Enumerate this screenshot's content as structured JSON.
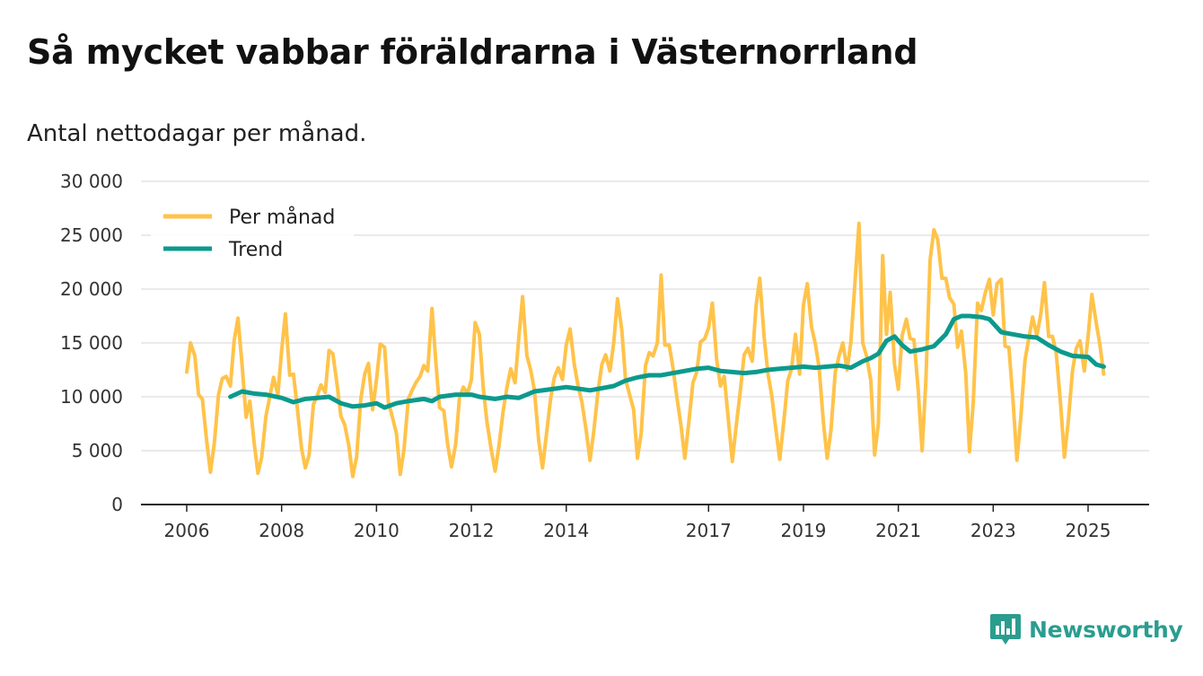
{
  "title": "Så mycket vabbar föräldrarna i Västernorrland",
  "subtitle": "Antal nettodagar per månad.",
  "brand": {
    "name": "Newsworthy",
    "icon": "newsworthy-logo-icon"
  },
  "colors": {
    "monthly": "#ffc34a",
    "trend": "#0b9a8d",
    "grid": "#dddddd",
    "axis": "#222222",
    "brand": "#2a9d8f"
  },
  "chart_data": {
    "type": "line",
    "title": "Så mycket vabbar föräldrarna i Västernorrland",
    "ylabel": "Antal nettodagar per månad.",
    "xlabel": "",
    "ylim": [
      0,
      30000
    ],
    "yticks": [
      0,
      5000,
      10000,
      15000,
      20000,
      25000,
      30000
    ],
    "ytick_labels": [
      "0",
      "5 000",
      "10 000",
      "15 000",
      "20 000",
      "25 000",
      "30 000"
    ],
    "xlim": [
      2006.0,
      2026.33
    ],
    "xticks": [
      2006,
      2008,
      2010,
      2012,
      2014,
      2017,
      2019,
      2021,
      2023,
      2025
    ],
    "xtick_labels": [
      "2006",
      "2008",
      "2010",
      "2012",
      "2014",
      "2017",
      "2019",
      "2021",
      "2023",
      "2025"
    ],
    "legend_position": "top-left",
    "series": [
      {
        "name": "Per månad",
        "color": "#ffc34a",
        "x": [
          2006.0,
          2006.08,
          2006.17,
          2006.25,
          2006.33,
          2006.42,
          2006.5,
          2006.58,
          2006.67,
          2006.75,
          2006.83,
          2006.92,
          2007.0,
          2007.08,
          2007.17,
          2007.25,
          2007.33,
          2007.42,
          2007.5,
          2007.58,
          2007.67,
          2007.75,
          2007.83,
          2007.92,
          2008.0,
          2008.08,
          2008.17,
          2008.25,
          2008.33,
          2008.42,
          2008.5,
          2008.58,
          2008.67,
          2008.75,
          2008.83,
          2008.92,
          2009.0,
          2009.08,
          2009.17,
          2009.25,
          2009.33,
          2009.42,
          2009.5,
          2009.58,
          2009.67,
          2009.75,
          2009.83,
          2009.92,
          2010.0,
          2010.08,
          2010.17,
          2010.25,
          2010.33,
          2010.42,
          2010.5,
          2010.58,
          2010.67,
          2010.75,
          2010.83,
          2010.92,
          2011.0,
          2011.08,
          2011.17,
          2011.25,
          2011.33,
          2011.42,
          2011.5,
          2011.58,
          2011.67,
          2011.75,
          2011.83,
          2011.92,
          2012.0,
          2012.08,
          2012.17,
          2012.25,
          2012.33,
          2012.42,
          2012.5,
          2012.58,
          2012.67,
          2012.75,
          2012.83,
          2012.92,
          2013.0,
          2013.08,
          2013.17,
          2013.25,
          2013.33,
          2013.42,
          2013.5,
          2013.58,
          2013.67,
          2013.75,
          2013.83,
          2013.92,
          2014.0,
          2014.08,
          2014.17,
          2014.25,
          2014.33,
          2014.42,
          2014.5,
          2014.58,
          2014.67,
          2014.75,
          2014.83,
          2014.92,
          2015.0,
          2015.08,
          2015.17,
          2015.25,
          2015.33,
          2015.42,
          2015.5,
          2015.58,
          2015.67,
          2015.75,
          2015.83,
          2015.92,
          2016.0,
          2016.08,
          2016.17,
          2016.25,
          2016.33,
          2016.42,
          2016.5,
          2016.58,
          2016.67,
          2016.75,
          2016.83,
          2016.92,
          2017.0,
          2017.08,
          2017.17,
          2017.25,
          2017.33,
          2017.42,
          2017.5,
          2017.58,
          2017.67,
          2017.75,
          2017.83,
          2017.92,
          2018.0,
          2018.08,
          2018.17,
          2018.25,
          2018.33,
          2018.42,
          2018.5,
          2018.58,
          2018.67,
          2018.75,
          2018.83,
          2018.92,
          2019.0,
          2019.08,
          2019.17,
          2019.25,
          2019.33,
          2019.42,
          2019.5,
          2019.58,
          2019.67,
          2019.75,
          2019.83,
          2019.92,
          2020.0,
          2020.08,
          2020.17,
          2020.25,
          2020.33,
          2020.42,
          2020.5,
          2020.58,
          2020.67,
          2020.75,
          2020.83,
          2020.92,
          2021.0,
          2021.08,
          2021.17,
          2021.25,
          2021.33,
          2021.42,
          2021.5,
          2021.58,
          2021.67,
          2021.75,
          2021.83,
          2021.92,
          2022.0,
          2022.08,
          2022.17,
          2022.25,
          2022.33,
          2022.42,
          2022.5,
          2022.58,
          2022.67,
          2022.75,
          2022.83,
          2022.92,
          2023.0,
          2023.08,
          2023.17,
          2023.25,
          2023.33,
          2023.42,
          2023.5,
          2023.58,
          2023.67,
          2023.75,
          2023.83,
          2023.92,
          2024.0,
          2024.08,
          2024.17,
          2024.25,
          2024.33,
          2024.42,
          2024.5,
          2024.58,
          2024.67,
          2024.75,
          2024.83,
          2024.92,
          2025.0,
          2025.08,
          2025.17,
          2025.25,
          2025.33
        ],
        "values": [
          12300,
          15000,
          13800,
          10200,
          9800,
          5900,
          3000,
          5600,
          10200,
          11700,
          11900,
          11000,
          15200,
          17300,
          12800,
          8100,
          9600,
          5800,
          2900,
          4400,
          8200,
          10000,
          11800,
          10200,
          14300,
          17700,
          12000,
          12100,
          9000,
          5200,
          3400,
          4600,
          9300,
          10100,
          11100,
          10400,
          14300,
          14000,
          11100,
          8200,
          7400,
          5400,
          2600,
          4400,
          9800,
          12100,
          13100,
          8800,
          11600,
          14900,
          14600,
          9500,
          8200,
          6600,
          2800,
          5100,
          9800,
          10600,
          11300,
          11900,
          12900,
          12400,
          18200,
          13300,
          9000,
          8700,
          5600,
          3500,
          5600,
          9900,
          10900,
          10300,
          11600,
          16900,
          15800,
          10800,
          7600,
          5100,
          3100,
          5400,
          8700,
          10900,
          12600,
          11300,
          15500,
          19300,
          13800,
          12500,
          10600,
          5900,
          3400,
          6400,
          9800,
          11800,
          12700,
          11600,
          14800,
          16300,
          13000,
          11000,
          9500,
          6900,
          4100,
          6800,
          10500,
          13000,
          13900,
          12400,
          15000,
          19100,
          16200,
          11600,
          10300,
          8800,
          4300,
          6600,
          12900,
          14100,
          13800,
          15000,
          21300,
          14800,
          14800,
          12700,
          10000,
          7300,
          4300,
          7500,
          11300,
          12300,
          15100,
          15400,
          16400,
          18700,
          13500,
          11000,
          11900,
          7700,
          4000,
          7200,
          10600,
          13900,
          14500,
          13300,
          18400,
          21000,
          15600,
          12200,
          10200,
          6900,
          4200,
          7500,
          11500,
          12600,
          15800,
          12100,
          18500,
          20500,
          16500,
          14900,
          12700,
          7700,
          4300,
          6900,
          12300,
          13800,
          15000,
          12500,
          15100,
          20200,
          26100,
          15000,
          13800,
          11500,
          4600,
          7500,
          23100,
          15800,
          19700,
          13000,
          10700,
          15700,
          17200,
          15400,
          15300,
          10600,
          5000,
          11500,
          22700,
          25500,
          24600,
          21000,
          21000,
          19200,
          18600,
          14600,
          16100,
          12200,
          4900,
          9500,
          18700,
          18000,
          19600,
          20900,
          17600,
          20500,
          20900,
          14700,
          14600,
          9500,
          4100,
          8000,
          13400,
          15400,
          17400,
          15700,
          17600,
          20600,
          15600,
          15600,
          14000,
          9300,
          4400,
          7600,
          12400,
          14500,
          15200,
          12400,
          15600,
          19500,
          16900,
          14800,
          12100
        ]
      },
      {
        "name": "Trend",
        "color": "#0b9a8d",
        "x": [
          2006.92,
          2007.17,
          2007.42,
          2007.67,
          2008.0,
          2008.25,
          2008.5,
          2008.75,
          2009.0,
          2009.25,
          2009.5,
          2009.75,
          2010.0,
          2010.17,
          2010.42,
          2010.67,
          2011.0,
          2011.17,
          2011.33,
          2011.67,
          2012.0,
          2012.17,
          2012.5,
          2012.75,
          2013.0,
          2013.17,
          2013.33,
          2013.67,
          2014.0,
          2014.17,
          2014.5,
          2014.75,
          2015.0,
          2015.25,
          2015.5,
          2015.75,
          2016.0,
          2016.25,
          2016.5,
          2016.75,
          2017.0,
          2017.25,
          2017.5,
          2017.75,
          2018.0,
          2018.25,
          2018.5,
          2018.75,
          2019.0,
          2019.25,
          2019.5,
          2019.75,
          2020.0,
          2020.25,
          2020.42,
          2020.58,
          2020.75,
          2020.92,
          2021.08,
          2021.25,
          2021.5,
          2021.75,
          2022.0,
          2022.17,
          2022.33,
          2022.5,
          2022.75,
          2022.92,
          2023.17,
          2023.42,
          2023.67,
          2023.92,
          2024.17,
          2024.42,
          2024.67,
          2025.0,
          2025.17,
          2025.33
        ],
        "values": [
          10000,
          10500,
          10300,
          10200,
          9900,
          9500,
          9800,
          9900,
          10000,
          9400,
          9100,
          9200,
          9400,
          9000,
          9400,
          9600,
          9800,
          9600,
          10000,
          10200,
          10200,
          10000,
          9800,
          10000,
          9900,
          10200,
          10500,
          10700,
          10900,
          10800,
          10600,
          10800,
          11000,
          11500,
          11800,
          12000,
          12000,
          12200,
          12400,
          12600,
          12700,
          12400,
          12300,
          12200,
          12300,
          12500,
          12600,
          12700,
          12800,
          12700,
          12800,
          12900,
          12700,
          13300,
          13600,
          14000,
          15200,
          15600,
          14800,
          14200,
          14400,
          14700,
          15800,
          17200,
          17500,
          17500,
          17400,
          17200,
          16000,
          15800,
          15600,
          15500,
          14800,
          14200,
          13800,
          13700,
          13000,
          12800
        ]
      }
    ]
  }
}
